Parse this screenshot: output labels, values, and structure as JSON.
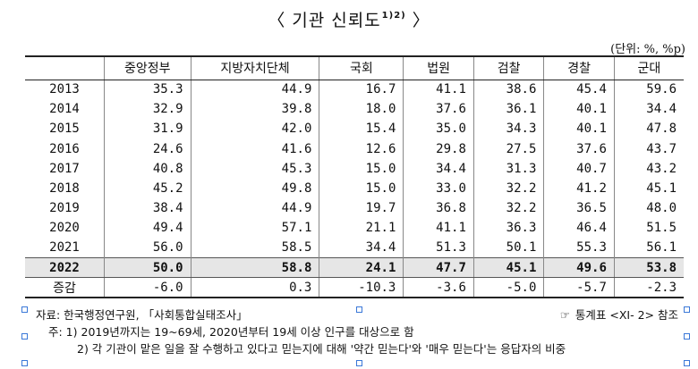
{
  "title": "〈 기관 신뢰도",
  "title_sup": "1)2)",
  "title_close": "〉",
  "unit": "(단위: %, %p)",
  "table": {
    "headers": [
      "",
      "중앙정부",
      "지방자치단체",
      "국회",
      "법원",
      "검찰",
      "경찰",
      "군대"
    ],
    "rows": [
      {
        "label": "2013",
        "values": [
          "35.3",
          "44.9",
          "16.7",
          "41.1",
          "38.6",
          "45.4",
          "59.6"
        ]
      },
      {
        "label": "2014",
        "values": [
          "32.9",
          "39.8",
          "18.0",
          "37.6",
          "36.1",
          "40.1",
          "34.4"
        ]
      },
      {
        "label": "2015",
        "values": [
          "31.9",
          "42.0",
          "15.4",
          "35.0",
          "34.3",
          "40.1",
          "47.8"
        ]
      },
      {
        "label": "2016",
        "values": [
          "24.6",
          "41.6",
          "12.6",
          "29.8",
          "27.5",
          "37.6",
          "43.7"
        ]
      },
      {
        "label": "2017",
        "values": [
          "40.8",
          "45.3",
          "15.0",
          "34.4",
          "31.3",
          "40.7",
          "43.2"
        ]
      },
      {
        "label": "2018",
        "values": [
          "45.2",
          "49.8",
          "15.0",
          "33.0",
          "32.2",
          "41.2",
          "45.1"
        ]
      },
      {
        "label": "2019",
        "values": [
          "38.4",
          "44.9",
          "19.7",
          "36.8",
          "32.2",
          "36.5",
          "48.0"
        ]
      },
      {
        "label": "2020",
        "values": [
          "49.4",
          "57.1",
          "21.1",
          "41.1",
          "36.3",
          "46.4",
          "51.5"
        ]
      },
      {
        "label": "2021",
        "values": [
          "56.0",
          "58.5",
          "34.4",
          "51.3",
          "50.1",
          "55.3",
          "56.1"
        ]
      },
      {
        "label": "2022",
        "values": [
          "50.0",
          "58.8",
          "24.1",
          "47.7",
          "45.1",
          "49.6",
          "53.8"
        ],
        "highlight": true
      },
      {
        "label": "증감",
        "values": [
          "-6.0",
          "0.3",
          "-10.3",
          "-3.6",
          "-5.0",
          "-5.7",
          "-2.3"
        ],
        "diff": true
      }
    ]
  },
  "notes": {
    "source": "자료: 한국행정연구원, 「사회통합실태조사」",
    "reference_icon": "☞",
    "reference": "통계표 <XI- 2> 참조",
    "note1": "주: 1) 2019년까지는 19~69세, 2020년부터 19세 이상 인구를 대상으로 함",
    "note2": "2) 각 기관이 맡은 일을 잘 수행하고 있다고 믿는지에 대해 '약간 믿는다'와 '매우 믿는다'는 응답자의 비중"
  },
  "colors": {
    "highlight_row": "#e6e6e6",
    "selection_handle": "#3a78d8"
  }
}
